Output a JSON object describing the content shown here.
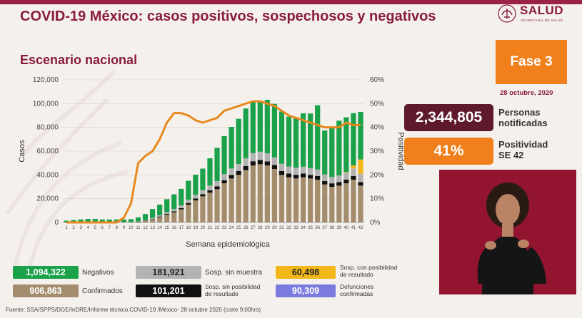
{
  "header": {
    "title": "COVID-19 México: casos positivos, sospechosos y negativos",
    "logo_text": "SALUD",
    "logo_subtext": "SECRETARÍA DE SALUD"
  },
  "subtitle": "Escenario nacional",
  "phase": {
    "label": "Fase 3",
    "color": "#f07f1c"
  },
  "date": "28 octubre, 2020",
  "kpis": {
    "total_value": "2,344,805",
    "total_label_line1": "Personas",
    "total_label_line2": "notificadas",
    "positivity_value": "41%",
    "positivity_label_line1": "Positividad",
    "positivity_label_line2": "SE 42"
  },
  "legend": {
    "negativos_value": "1,094,322",
    "negativos_label": "Negativos",
    "confirmados_value": "906,863",
    "confirmados_label": "Confirmados",
    "sin_muestra_value": "181,921",
    "sin_muestra_label": "Sosp. sin muestra",
    "sin_resultado_value": "101,201",
    "sin_resultado_line1": "Sosp. sin posibilidad",
    "sin_resultado_line2": "de resultado",
    "con_posibilidad_value": "60,498",
    "con_posibilidad_line1": "Sosp. con posibilidad",
    "con_posibilidad_line2": "de resultado",
    "defunciones_value": "90,309",
    "defunciones_line1": "Defunciones",
    "defunciones_line2": "confirmadas"
  },
  "footer": "Fuente: SSA/SPPS/DGE/InDRE/Informe técnico.COVID-19 /México- 28 octubre 2020 (corte 9:00hrs)",
  "colors": {
    "negativos": "#1aa14a",
    "confirmados": "#a38d6d",
    "sin_muestra": "#b3b3b3",
    "sin_resultado": "#111111",
    "con_posibilidad": "#f2b81a",
    "defunciones": "#7b7bdf",
    "positividad_line": "#e8891e",
    "brand": "#8a1c3c"
  },
  "chart_data": {
    "type": "bar",
    "xlabel": "Semana epidemiológica",
    "ylabel": "Casos",
    "y2label": "Positividad",
    "ylim": [
      0,
      120000
    ],
    "y2lim": [
      0,
      60
    ],
    "yticks": [
      "0",
      "20,000",
      "40,000",
      "60,000",
      "80,000",
      "100,000",
      "120,000"
    ],
    "y2ticks": [
      "0%",
      "10%",
      "20%",
      "30%",
      "40%",
      "50%",
      "60%"
    ],
    "categories": [
      "1",
      "2",
      "3",
      "4",
      "5",
      "6",
      "7",
      "8",
      "9",
      "10",
      "11",
      "12",
      "13",
      "14",
      "15",
      "16",
      "17",
      "18",
      "19",
      "20",
      "21",
      "22",
      "23",
      "24",
      "25",
      "26",
      "27",
      "28",
      "29",
      "30",
      "31",
      "32",
      "33",
      "34",
      "35",
      "36",
      "37",
      "38",
      "39",
      "40",
      "41",
      "42"
    ],
    "series": [
      {
        "name": "Confirmados",
        "values": [
          0,
          0,
          0,
          0,
          0,
          0,
          0,
          0,
          0,
          100,
          500,
          1500,
          2800,
          4500,
          6500,
          8500,
          11000,
          15000,
          18500,
          22000,
          25000,
          28000,
          33000,
          37000,
          40000,
          44000,
          48000,
          49000,
          48000,
          45000,
          40000,
          38000,
          37000,
          38000,
          37000,
          36000,
          32000,
          30000,
          31000,
          33000,
          36000,
          31000
        ]
      },
      {
        "name": "Sosp. sin posibilidad de resultado",
        "values": [
          0,
          0,
          0,
          0,
          0,
          0,
          0,
          0,
          0,
          50,
          100,
          200,
          300,
          500,
          700,
          900,
          1100,
          1400,
          1600,
          1800,
          2000,
          2300,
          2600,
          2900,
          3200,
          3400,
          3500,
          3500,
          3400,
          3300,
          3200,
          3100,
          3100,
          3100,
          3000,
          3000,
          2900,
          2900,
          3000,
          3000,
          3000,
          3000
        ]
      },
      {
        "name": "Sosp. sin muestra",
        "values": [
          0,
          0,
          0,
          0,
          0,
          0,
          0,
          0,
          0,
          100,
          200,
          400,
          700,
          1000,
          1400,
          1800,
          2200,
          2700,
          3100,
          3500,
          4000,
          4500,
          5000,
          5500,
          6000,
          6500,
          7000,
          7000,
          6800,
          6500,
          6200,
          6000,
          5900,
          5800,
          5700,
          5600,
          5500,
          5500,
          5600,
          6000,
          6500,
          7000
        ]
      },
      {
        "name": "Sosp. con posibilidad de resultado",
        "values": [
          0,
          0,
          0,
          0,
          0,
          0,
          0,
          0,
          0,
          0,
          0,
          0,
          0,
          0,
          0,
          0,
          0,
          0,
          0,
          0,
          0,
          0,
          0,
          0,
          0,
          0,
          0,
          0,
          0,
          0,
          0,
          0,
          0,
          0,
          0,
          0,
          0,
          0,
          0,
          500,
          2500,
          12000
        ]
      },
      {
        "name": "Negativos",
        "values": [
          1500,
          2000,
          2500,
          3000,
          3000,
          2500,
          2500,
          2500,
          2500,
          2500,
          3500,
          5000,
          7500,
          9000,
          11000,
          12500,
          14000,
          16000,
          17000,
          18000,
          23000,
          28000,
          32000,
          35000,
          38000,
          42000,
          44000,
          43000,
          45000,
          45000,
          44000,
          42000,
          42000,
          45000,
          46000,
          54000,
          37000,
          42000,
          46000,
          46000,
          44000,
          40000
        ]
      }
    ],
    "positividad": [
      0,
      0,
      0,
      0,
      0,
      0,
      0,
      0,
      2,
      8,
      25,
      28,
      30,
      35,
      42,
      46,
      46,
      45,
      43,
      42,
      43,
      44,
      47,
      48,
      49,
      50,
      51,
      51,
      50,
      49,
      47,
      45,
      44,
      43,
      42,
      41,
      40,
      40,
      40,
      42,
      41,
      41
    ]
  }
}
